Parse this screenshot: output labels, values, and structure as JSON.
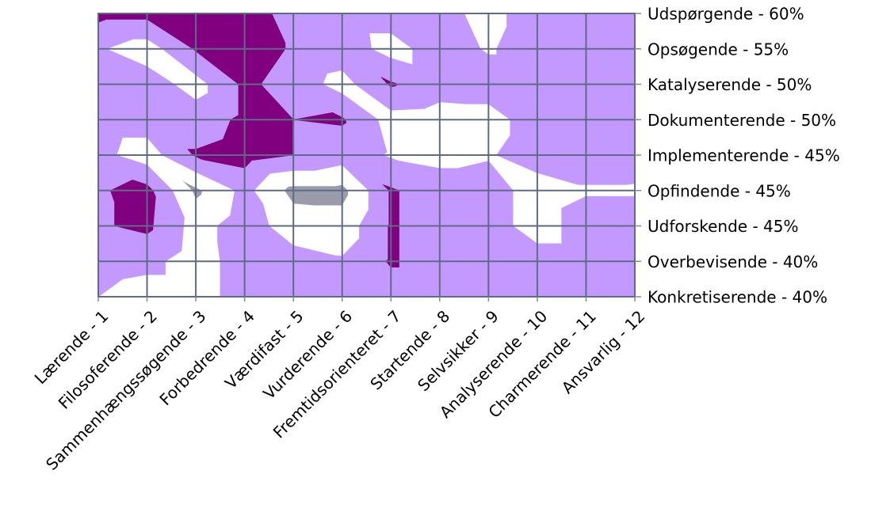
{
  "chart_data": {
    "type": "surface",
    "categories": [
      "Lærende - 1",
      "Filosoferende - 2",
      "Sammenhængssøgende - 3",
      "Forbedrende - 4",
      "Værdifast - 5",
      "Vurderende - 6",
      "Fremtidsorienteret - 7",
      "Startende - 8",
      "Selvsikker - 9",
      "Analyserende - 10",
      "Charmerende - 11",
      "Ansvarlig - 12"
    ],
    "series": [
      {
        "name": "Udspørgende - 60%",
        "values": [
          2.3,
          2.3,
          2.2,
          2.5,
          1.6,
          1.5,
          1.5,
          1.3,
          0.7,
          1.5,
          1.5,
          1.5
        ]
      },
      {
        "name": "Opsøgende - 55%",
        "values": [
          1.1,
          0.5,
          2.1,
          2.5,
          1.9,
          1.6,
          0.6,
          1.5,
          0.9,
          1.5,
          1.5,
          1.5
        ]
      },
      {
        "name": "Katalyserende - 50%",
        "values": [
          1.5,
          1.5,
          0.6,
          2.2,
          1.6,
          0.6,
          2.1,
          1.5,
          1.5,
          1.5,
          1.5,
          1.5
        ]
      },
      {
        "name": "Dokumenterende - 50%",
        "values": [
          1.5,
          1.5,
          1.5,
          2.2,
          2.0,
          2.1,
          0.6,
          0.5,
          0.6,
          1.5,
          1.5,
          1.5
        ]
      },
      {
        "name": "Implementerende - 45%",
        "values": [
          1.3,
          0.5,
          2.1,
          2.4,
          2.0,
          1.5,
          0.9,
          0.7,
          0.9,
          1.5,
          1.5,
          1.4
        ]
      },
      {
        "name": "Opfindende - 45%",
        "values": [
          1.9,
          2.3,
          -0.2,
          1.3,
          -0.3,
          -0.3,
          2.1,
          1.5,
          1.5,
          0.5,
          0.9,
          0.9
        ]
      },
      {
        "name": "Udforskende - 45%",
        "values": [
          1.9,
          2.2,
          0.6,
          1.5,
          0.5,
          0.4,
          2.1,
          1.5,
          1.5,
          0.5,
          1.5,
          1.5
        ]
      },
      {
        "name": "Overbevisende - 40%",
        "values": [
          1.5,
          1.3,
          0.5,
          1.5,
          1.4,
          1.1,
          2.1,
          1.5,
          1.5,
          1.5,
          1.5,
          1.5
        ]
      },
      {
        "name": "Konkretiserende - 40%",
        "values": [
          1.0,
          0.5,
          0.5,
          1.5,
          1.5,
          1.5,
          1.5,
          1.5,
          1.5,
          1.5,
          1.5,
          1.5
        ]
      }
    ],
    "levels": [
      0,
      1,
      2
    ],
    "colors": [
      "#9a9cab",
      "#ffffff",
      "#c399ff",
      "#800080"
    ],
    "grid": true
  }
}
